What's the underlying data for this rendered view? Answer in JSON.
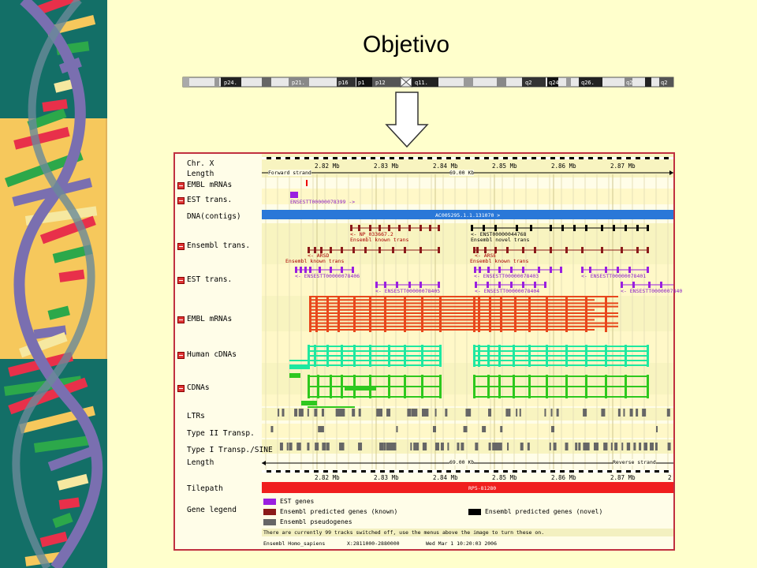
{
  "slide": {
    "title": "Objetivo"
  },
  "ideogram": {
    "bands": [
      "p24.",
      "p21.",
      "p16",
      "p1",
      "p12",
      "q11.",
      "q2",
      "q24",
      "q26.",
      "q2",
      "q2"
    ]
  },
  "colors": {
    "est": "#9a1fe0",
    "ensembl_known": "#8b1a1a",
    "ensembl_novel": "#000000",
    "pseudogene": "#666666",
    "embl_mrna": "#e8471c",
    "human_cdna": "#1ee8a0",
    "cdna": "#2ec81e",
    "contig": "#2a78d8",
    "tilepath": "#f01e1e"
  },
  "browser": {
    "top_ticks": [
      "2.82 Mb",
      "2.83 Mb",
      "2.84 Mb",
      "2.85 Mb",
      "2.86 Mb",
      "2.87 Mb"
    ],
    "bottom_ticks": [
      "2.82 Mb",
      "2.83 Mb",
      "2.84 Mb",
      "2.85 Mb",
      "2.86 Mb",
      "2.87 Mb",
      "2"
    ],
    "forward_strand": "Forward strand",
    "reverse_strand": "Reverse strand",
    "length_value": "69.00 Kb",
    "tracks": {
      "chr": "Chr. X",
      "length": "Length",
      "embl_mrnas_top": "EMBL mRNAs",
      "est_trans_top": "EST trans.",
      "dna_contigs": "DNA(contigs)",
      "ensembl_trans": "Ensembl trans.",
      "est_trans": "EST trans.",
      "embl_mrnas": "EMBL mRNAs",
      "human_cdnas": "Human cDNAs",
      "cdnas": "CDNAs",
      "ltrs": "LTRs",
      "type2": "Type II Transp.",
      "type1": "Type I Transp./SINE",
      "length_bottom": "Length",
      "tilepath": "Tilepath",
      "gene_legend": "Gene legend"
    },
    "features": {
      "est_top": "ENSESTT00000078399 ->",
      "contig": "AC005295.1.1.131070 >",
      "np": "<- NP_033667.2",
      "np_sub": "Ensembl known trans",
      "enst": "<- ENST00000044768",
      "enst_sub": "Ensembl novel trans",
      "arsd": "<- ARSD",
      "arsd_sub": "Ensembl known trans",
      "arse": "<- ARSE",
      "arse_sub": "Ensembl known trans",
      "est1": "<- ENSESTT00000078406",
      "est2": "<- ENSESTT00000078403",
      "est3": "<- ENSESTT00000078401",
      "est4": "<- ENSESTT00000078405",
      "est5": "<- ENSESTT00000078404",
      "est6": "<- ENSESTT0000007840",
      "tilepath_clone": "RP5-81280"
    },
    "legend": {
      "est_genes": "EST genes",
      "known": "Ensembl predicted genes (known)",
      "novel": "Ensembl predicted genes (novel)",
      "pseudo": "Ensembl pseudogenes"
    },
    "footer": {
      "notice": "There are currently 99 tracks switched off, use the menus above the image to turn these on.",
      "species": "Ensembl Homo_sapiens",
      "location": "X:2811000-2880000",
      "date": "Wed Mar  1 10:20:03 2006"
    }
  }
}
